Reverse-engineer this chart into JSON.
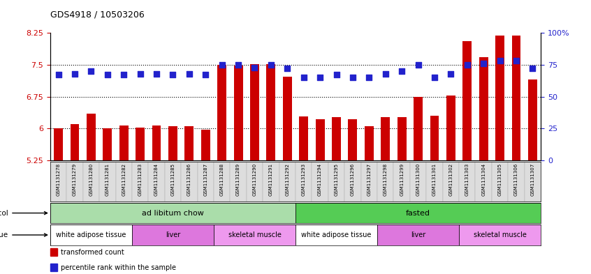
{
  "title": "GDS4918 / 10503206",
  "samples": [
    "GSM1131278",
    "GSM1131279",
    "GSM1131280",
    "GSM1131281",
    "GSM1131282",
    "GSM1131283",
    "GSM1131284",
    "GSM1131285",
    "GSM1131286",
    "GSM1131287",
    "GSM1131288",
    "GSM1131289",
    "GSM1131290",
    "GSM1131291",
    "GSM1131292",
    "GSM1131293",
    "GSM1131294",
    "GSM1131295",
    "GSM1131296",
    "GSM1131297",
    "GSM1131298",
    "GSM1131299",
    "GSM1131300",
    "GSM1131301",
    "GSM1131302",
    "GSM1131303",
    "GSM1131304",
    "GSM1131305",
    "GSM1131306",
    "GSM1131307"
  ],
  "bar_values": [
    6.01,
    6.1,
    6.35,
    6.0,
    6.07,
    6.02,
    6.07,
    6.05,
    6.05,
    5.97,
    7.5,
    7.48,
    7.52,
    7.52,
    7.22,
    6.28,
    6.22,
    6.27,
    6.22,
    6.05,
    6.27,
    6.27,
    6.75,
    6.3,
    6.78,
    8.05,
    7.68,
    8.18,
    8.18,
    7.15
  ],
  "dot_values": [
    67,
    68,
    70,
    67,
    67,
    68,
    68,
    67,
    68,
    67,
    75,
    75,
    73,
    75,
    72,
    65,
    65,
    67,
    65,
    65,
    68,
    70,
    75,
    65,
    68,
    75,
    76,
    78,
    78,
    72
  ],
  "ylim_left": [
    5.25,
    8.25
  ],
  "yticks_left": [
    5.25,
    6.0,
    6.75,
    7.5,
    8.25
  ],
  "ytick_labels_left": [
    "5.25",
    "6",
    "6.75",
    "7.5",
    "8.25"
  ],
  "ylim_right": [
    0,
    100
  ],
  "yticks_right": [
    0,
    25,
    50,
    75,
    100
  ],
  "ytick_labels_right": [
    "0",
    "25",
    "50",
    "75",
    "100%"
  ],
  "bar_color": "#cc0000",
  "dot_color": "#2222cc",
  "dot_size": 28,
  "protocol_groups": [
    {
      "label": "ad libitum chow",
      "start": 0,
      "end": 14,
      "color": "#aaddaa"
    },
    {
      "label": "fasted",
      "start": 15,
      "end": 29,
      "color": "#55cc55"
    }
  ],
  "tissue_groups": [
    {
      "label": "white adipose tissue",
      "start": 0,
      "end": 4,
      "color": "#ffffff"
    },
    {
      "label": "liver",
      "start": 5,
      "end": 9,
      "color": "#dd77dd"
    },
    {
      "label": "skeletal muscle",
      "start": 10,
      "end": 14,
      "color": "#ee99ee"
    },
    {
      "label": "white adipose tissue",
      "start": 15,
      "end": 19,
      "color": "#ffffff"
    },
    {
      "label": "liver",
      "start": 20,
      "end": 24,
      "color": "#dd77dd"
    },
    {
      "label": "skeletal muscle",
      "start": 25,
      "end": 29,
      "color": "#ee99ee"
    }
  ],
  "legend_items": [
    {
      "label": "transformed count",
      "color": "#cc0000"
    },
    {
      "label": "percentile rank within the sample",
      "color": "#2222cc"
    }
  ],
  "ytick_color_left": "#cc0000",
  "ytick_color_right": "#2222cc",
  "xticklabel_bg": "#dddddd"
}
